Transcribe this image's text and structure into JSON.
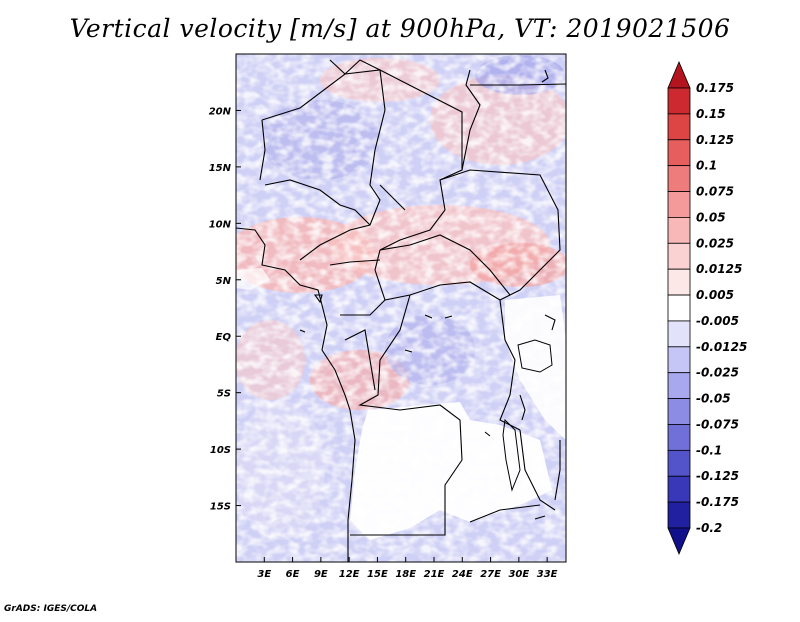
{
  "title": "Vertical velocity [m/s] at 900hPa, VT: 2019021506",
  "footer": "GrADS: IGES/COLA",
  "map": {
    "lon_range": [
      0,
      35
    ],
    "lat_range": [
      -20,
      25
    ],
    "lat_ticks": [
      {
        "value": 20,
        "label": "20N"
      },
      {
        "value": 15,
        "label": "15N"
      },
      {
        "value": 10,
        "label": "10N"
      },
      {
        "value": 5,
        "label": "5N"
      },
      {
        "value": 0,
        "label": "EQ"
      },
      {
        "value": -5,
        "label": "5S"
      },
      {
        "value": -10,
        "label": "10S"
      },
      {
        "value": -15,
        "label": "15S"
      }
    ],
    "lon_ticks": [
      {
        "value": 3,
        "label": "3E"
      },
      {
        "value": 6,
        "label": "6E"
      },
      {
        "value": 9,
        "label": "9E"
      },
      {
        "value": 12,
        "label": "12E"
      },
      {
        "value": 15,
        "label": "15E"
      },
      {
        "value": 18,
        "label": "18E"
      },
      {
        "value": 21,
        "label": "21E"
      },
      {
        "value": 24,
        "label": "24E"
      },
      {
        "value": 27,
        "label": "27E"
      },
      {
        "value": 30,
        "label": "30E"
      },
      {
        "value": 33,
        "label": "33E"
      }
    ]
  },
  "colorbar": {
    "labels": [
      "0.175",
      "0.15",
      "0.125",
      "0.1",
      "0.075",
      "0.05",
      "0.025",
      "0.0125",
      "0.005",
      "-0.005",
      "-0.0125",
      "-0.025",
      "-0.05",
      "-0.075",
      "-0.1",
      "-0.125",
      "-0.175",
      "-0.2"
    ],
    "colors": [
      "#b4141e",
      "#cc2a30",
      "#dd4444",
      "#e65e5e",
      "#ee7c7c",
      "#f59a9a",
      "#f8b8b8",
      "#fbd2d2",
      "#fde8e8",
      "#ffffff",
      "#e2e2fb",
      "#c6c6f6",
      "#a8a8ee",
      "#8c8ce4",
      "#7070d8",
      "#5454ca",
      "#3838b8",
      "#2020a0",
      "#10108a"
    ]
  }
}
